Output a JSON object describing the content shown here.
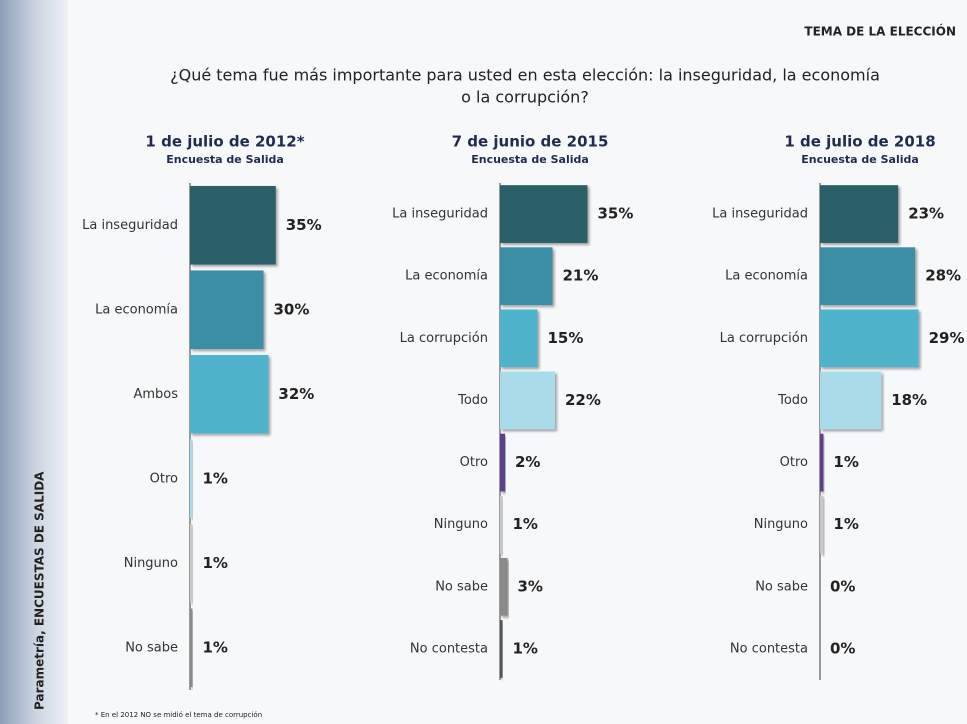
{
  "header": {
    "section": "TEMA DE LA ELECCIÓN",
    "question": [
      "¿Qué tema fue más importante para usted en esta elección: la inseguridad, la economía",
      "o la corrupción?"
    ]
  },
  "source": "Parametría, ENCUESTAS DE SALIDA",
  "footnote": "* En el 2012 NO se midió el tema de corrupción",
  "chart_data": [
    {
      "type": "bar",
      "orientation": "horizontal",
      "title": "1 de julio de 2012*",
      "subtitle": "Encuesta de Salida",
      "categories": [
        "La inseguridad",
        "La economía",
        "Ambos",
        "Otro",
        "Ninguno",
        "No sabe"
      ],
      "values": [
        35,
        30,
        32,
        1,
        1,
        1
      ],
      "value_labels": [
        "35%",
        "30%",
        "32%",
        "1%",
        "1%",
        "1%"
      ],
      "colors": [
        "#2c5f68",
        "#3a8ea4",
        "#4fb3cc",
        "#a9dbe8",
        "#c9c9c9",
        "#8a8a8a"
      ]
    },
    {
      "type": "bar",
      "orientation": "horizontal",
      "title": "7 de junio de 2015",
      "subtitle": "Encuesta de Salida",
      "categories": [
        "La inseguridad",
        "La economía",
        "La corrupción",
        "Todo",
        "Otro",
        "Ninguno",
        "No sabe",
        "No contesta"
      ],
      "values": [
        35,
        21,
        15,
        22,
        2,
        1,
        3,
        1
      ],
      "value_labels": [
        "35%",
        "21%",
        "15%",
        "22%",
        "2%",
        "1%",
        "3%",
        "1%"
      ],
      "colors": [
        "#2c5f68",
        "#3a8ea4",
        "#4fb3cc",
        "#a9dbe8",
        "#5b3f8c",
        "#c9c9c9",
        "#8a8a8a",
        "#555555"
      ]
    },
    {
      "type": "bar",
      "orientation": "horizontal",
      "title": "1 de julio de 2018",
      "subtitle": "Encuesta de Salida",
      "categories": [
        "La inseguridad",
        "La economía",
        "La corrupción",
        "Todo",
        "Otro",
        "Ninguno",
        "No sabe",
        "No contesta"
      ],
      "values": [
        23,
        28,
        29,
        18,
        1,
        1,
        0,
        0
      ],
      "value_labels": [
        "23%",
        "28%",
        "29%",
        "18%",
        "1%",
        "1%",
        "0%",
        "0%"
      ],
      "colors": [
        "#2c5f68",
        "#3a8ea4",
        "#4fb3cc",
        "#a9dbe8",
        "#5b3f8c",
        "#c9c9c9",
        "#8a8a8a",
        "#555555"
      ]
    }
  ]
}
